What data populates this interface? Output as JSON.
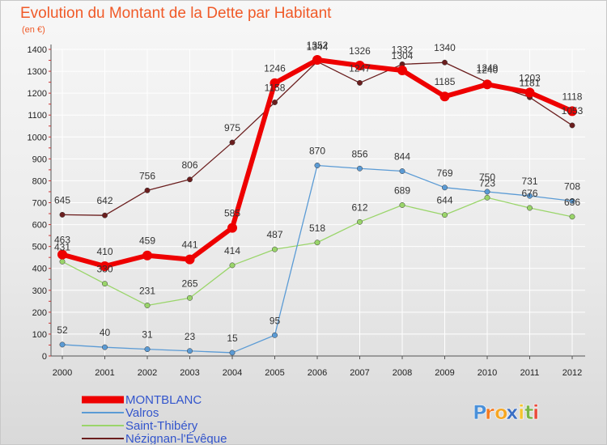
{
  "colors": {
    "title": "#f05a28",
    "legend_text": "#3355cc",
    "grid": "#ffffff",
    "axis": "#555555"
  },
  "logo": {
    "text": "Proxiti",
    "letters": [
      "P",
      "r",
      "o",
      "x",
      "i",
      "t",
      "i"
    ],
    "colors": [
      "#4a90d9",
      "#f47a20",
      "#f5a623",
      "#3a6fc4",
      "#f4c430",
      "#7ab648",
      "#e94b3c"
    ]
  },
  "chart_data": {
    "type": "line",
    "title": "Evolution du Montant de la Dette par Habitant",
    "subtitle": "(en €)",
    "xlabel": "",
    "ylabel": "",
    "x": [
      "2000",
      "2001",
      "2002",
      "2003",
      "2004",
      "2005",
      "2006",
      "2007",
      "2008",
      "2009",
      "2010",
      "2011",
      "2012"
    ],
    "ylim": [
      0,
      1400
    ],
    "yticks": [
      0,
      100,
      200,
      300,
      400,
      500,
      600,
      700,
      800,
      900,
      1000,
      1100,
      1200,
      1300,
      1400
    ],
    "grid": true,
    "legend_position": "bottom-left",
    "series": [
      {
        "name": "MONTBLANC",
        "color": "#ee0000",
        "width": 6,
        "values": [
          463,
          410,
          459,
          441,
          585,
          1246,
          1352,
          1326,
          1304,
          1185,
          1240,
          1203,
          1118
        ],
        "labels": [
          "463",
          "410",
          "459",
          "441",
          "585",
          "1246",
          "1352",
          "1326",
          "1304",
          "1185",
          "1240",
          "1203",
          "1118"
        ]
      },
      {
        "name": "Valros",
        "color": "#5b9bd5",
        "width": 1.3,
        "values": [
          52,
          40,
          31,
          23,
          15,
          95,
          870,
          856,
          844,
          769,
          750,
          731,
          708
        ],
        "labels": [
          "52",
          "40",
          "31",
          "23",
          "15",
          "95",
          "870",
          "856",
          "844",
          "769",
          "750",
          "731",
          "708"
        ]
      },
      {
        "name": "Saint-Thibéry",
        "color": "#9ad56a",
        "width": 1.3,
        "values": [
          431,
          330,
          231,
          265,
          414,
          487,
          518,
          612,
          689,
          644,
          723,
          676,
          636
        ],
        "labels": [
          "431",
          "330",
          "231",
          "265",
          "414",
          "487",
          "518",
          "612",
          "689",
          "644",
          "723",
          "676",
          "636"
        ]
      },
      {
        "name": "Nézignan-l'Évêque",
        "color": "#6b1e1e",
        "width": 1.3,
        "values": [
          645,
          642,
          756,
          806,
          975,
          1158,
          1344,
          1247,
          1332,
          1340,
          1249,
          1181,
          1053
        ],
        "labels": [
          "645",
          "642",
          "756",
          "806",
          "975",
          "1158",
          "1344",
          "1247",
          "1332",
          "1340",
          "1249",
          "1181",
          "1053"
        ]
      }
    ]
  }
}
